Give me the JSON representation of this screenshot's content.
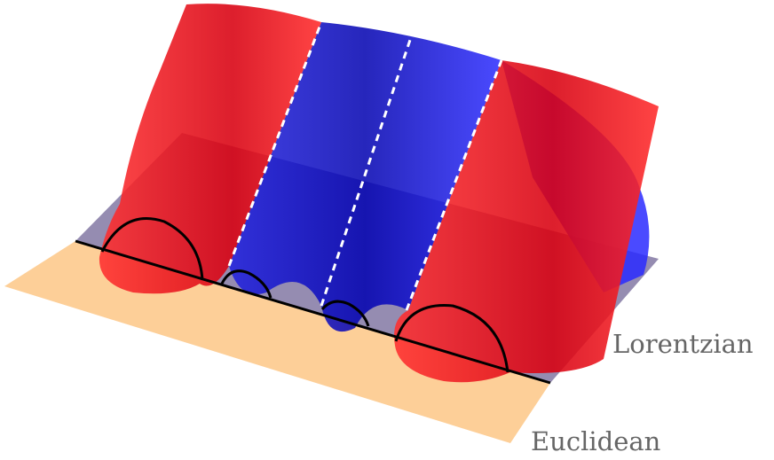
{
  "labels": {
    "lorentzian": "Lorentzian",
    "euclidean": "Euclidean"
  }
}
